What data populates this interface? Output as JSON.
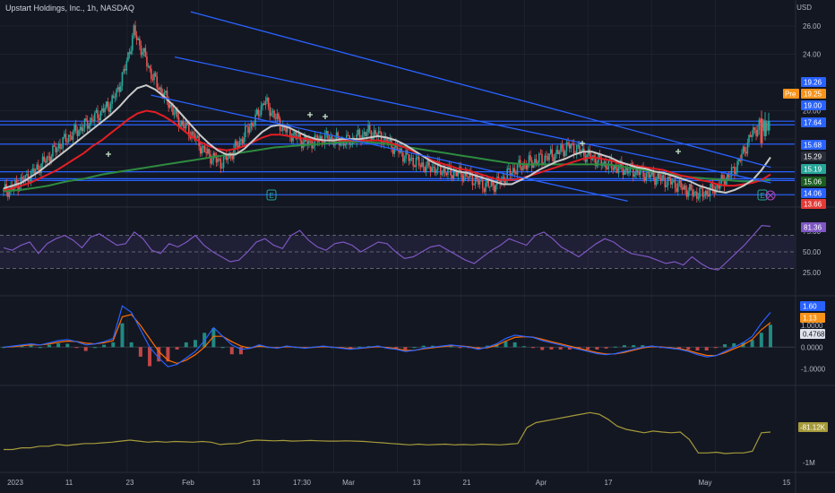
{
  "header": {
    "title": "Upstart Holdings, Inc., 1h, NASDAQ",
    "currency": "USD"
  },
  "colors": {
    "background": "#131722",
    "grid": "#1e222d",
    "candle_up": "#26a69a",
    "candle_down": "#ef5350",
    "trend_line": "#2962ff",
    "hline": "#2962ff",
    "ma_red": "#e31e24",
    "ma_green": "#2e8b3e",
    "ma_white": "#c9c9c9",
    "rsi": "#7e57c2",
    "macd": "#2962ff",
    "signal": "#ff6d00",
    "volume_line": "#a59a3a"
  },
  "price_axis": {
    "ticks": [
      "26.00",
      "24.00",
      "22.00",
      "20.00",
      "17.64",
      "15.68",
      "15.29",
      "15.19",
      "15.06",
      "14.06",
      "13.66"
    ],
    "badges": [
      {
        "label": "19.26",
        "color": "#2962ff"
      },
      {
        "label": "19.25",
        "color": "#f7931a",
        "prefix": "Pre"
      },
      {
        "label": "19.00",
        "color": "#2962ff"
      },
      {
        "label": "17.64",
        "color": "#2962ff"
      },
      {
        "label": "15.68",
        "color": "#2962ff"
      },
      {
        "label": "15.29",
        "color": "#2a2e39"
      },
      {
        "label": "15.19",
        "color": "#26a69a"
      },
      {
        "label": "15.06",
        "color": "#1b5e20"
      },
      {
        "label": "14.06",
        "color": "#2962ff"
      },
      {
        "label": "13.66",
        "color": "#e53935"
      }
    ]
  },
  "rsi_axis": {
    "ticks": [
      "75.00",
      "50.00",
      "25.00"
    ],
    "badge": "81.36"
  },
  "macd_axis": {
    "ticks": [
      "1.0000",
      "0.0000",
      "-1.0000"
    ],
    "badges": [
      "1.60",
      "1.13",
      "0.4768"
    ]
  },
  "vol_axis": {
    "ticks": [
      "-1M"
    ],
    "badge": "-81.12K"
  },
  "time_axis": {
    "labels": [
      "2023",
      "11",
      "23",
      "Feb",
      "13",
      "17:30",
      "Mar",
      "13",
      "21",
      "Apr",
      "17",
      "May",
      "15"
    ]
  },
  "events": {
    "earnings_label": "E"
  },
  "chart_data": {
    "type": "candlestick",
    "symbol": "Upstart Holdings, Inc.",
    "interval": "1h",
    "exchange": "NASDAQ",
    "price_range": [
      13.5,
      27.2
    ],
    "price_path": [
      14.3,
      14.5,
      15.0,
      15.4,
      16.0,
      16.6,
      17.3,
      17.9,
      18.4,
      18.8,
      19.3,
      19.8,
      20.3,
      21.2,
      23.0,
      25.6,
      24.2,
      22.6,
      21.5,
      20.6,
      19.4,
      18.8,
      18.1,
      17.2,
      16.7,
      16.3,
      16.8,
      17.6,
      18.6,
      19.4,
      20.7,
      19.8,
      18.9,
      18.4,
      18.0,
      17.7,
      17.9,
      18.1,
      18.0,
      17.8,
      17.9,
      18.2,
      18.5,
      18.3,
      17.9,
      17.4,
      16.9,
      16.5,
      16.2,
      16.0,
      15.9,
      15.7,
      15.6,
      15.5,
      15.2,
      14.8,
      14.7,
      14.9,
      15.5,
      15.9,
      16.2,
      16.4,
      16.6,
      16.8,
      17.1,
      17.5,
      17.3,
      16.9,
      16.6,
      16.3,
      16.1,
      15.9,
      15.8,
      15.7,
      15.5,
      15.3,
      15.1,
      14.9,
      14.6,
      14.3,
      14.1,
      14.2,
      14.6,
      15.1,
      15.7,
      16.8,
      18.2,
      19.0,
      18.9
    ],
    "ma_white": [
      14.5,
      14.7,
      14.9,
      15.3,
      15.7,
      16.2,
      16.7,
      17.2,
      17.7,
      18.2,
      18.7,
      19.2,
      19.7,
      20.3,
      21.0,
      21.6,
      21.8,
      21.5,
      21.0,
      20.4,
      19.7,
      19.0,
      18.3,
      17.7,
      17.2,
      16.9,
      16.9,
      17.3,
      17.9,
      18.5,
      18.9,
      19.0,
      18.8,
      18.5,
      18.2,
      18.0,
      17.9,
      17.9,
      18.0,
      18.0,
      18.0,
      18.1,
      18.2,
      18.1,
      17.9,
      17.6,
      17.2,
      16.8,
      16.4,
      16.1,
      15.9,
      15.7,
      15.6,
      15.4,
      15.2,
      15.0,
      14.8,
      14.8,
      15.1,
      15.4,
      15.8,
      16.1,
      16.4,
      16.6,
      16.9,
      17.1,
      17.1,
      16.9,
      16.7,
      16.4,
      16.2,
      16.0,
      15.9,
      15.7,
      15.6,
      15.4,
      15.2,
      15.0,
      14.7,
      14.5,
      14.3,
      14.2,
      14.4,
      14.7,
      15.1,
      15.8,
      16.7
    ],
    "ma_red": [
      14.4,
      14.5,
      14.7,
      14.9,
      15.2,
      15.5,
      15.8,
      16.2,
      16.6,
      17.0,
      17.5,
      17.9,
      18.4,
      18.9,
      19.4,
      19.8,
      20.0,
      19.9,
      19.6,
      19.2,
      18.7,
      18.2,
      17.8,
      17.5,
      17.3,
      17.2,
      17.3,
      17.5,
      17.8,
      18.1,
      18.3,
      18.3,
      18.2,
      18.1,
      18.0,
      17.9,
      17.9,
      17.9,
      17.9,
      17.9,
      17.9,
      17.9,
      17.9,
      17.8,
      17.6,
      17.4,
      17.1,
      16.8,
      16.5,
      16.3,
      16.1,
      15.9,
      15.8,
      15.6,
      15.4,
      15.2,
      15.1,
      15.1,
      15.2,
      15.4,
      15.6,
      15.8,
      16.0,
      16.2,
      16.4,
      16.6,
      16.7,
      16.6,
      16.5,
      16.3,
      16.2,
      16.1,
      16.0,
      15.9,
      15.8,
      15.6,
      15.4,
      15.3,
      15.1,
      15.0,
      14.8,
      14.7,
      14.7,
      14.8,
      14.9,
      15.1,
      15.5
    ],
    "ma_green": [
      14.3,
      14.35,
      14.4,
      14.5,
      14.6,
      14.7,
      14.85,
      15.0,
      15.1,
      15.2,
      15.35,
      15.5,
      15.6,
      15.7,
      15.8,
      15.9,
      16.0,
      16.1,
      16.2,
      16.3,
      16.4,
      16.5,
      16.6,
      16.7,
      16.8,
      16.9,
      17.0,
      17.1,
      17.2,
      17.3,
      17.4,
      17.45,
      17.5,
      17.55,
      17.6,
      17.65,
      17.7,
      17.75,
      17.8,
      17.8,
      17.8,
      17.75,
      17.7,
      17.6,
      17.5,
      17.4,
      17.3,
      17.2,
      17.1,
      17.0,
      16.9,
      16.8,
      16.7,
      16.6,
      16.5,
      16.4,
      16.3,
      16.25,
      16.2,
      16.2,
      16.2,
      16.2,
      16.2,
      16.2,
      16.2,
      16.2,
      16.2,
      16.2,
      16.1,
      16.0,
      15.9,
      15.8,
      15.7,
      15.6,
      15.5,
      15.4,
      15.3,
      15.25,
      15.2,
      15.15,
      15.1,
      15.05,
      15.0,
      15.0,
      15.05,
      15.1
    ],
    "horizontal_levels": [
      19.26,
      19.0,
      17.64,
      15.68,
      15.19,
      15.06,
      14.06
    ],
    "trend_lines": [
      {
        "from": {
          "t": 0.24,
          "p": 27.0
        },
        "to": {
          "t": 0.97,
          "p": 16.0
        }
      },
      {
        "from": {
          "t": 0.22,
          "p": 23.8
        },
        "to": {
          "t": 0.97,
          "p": 14.9
        }
      },
      {
        "from": {
          "t": 0.19,
          "p": 21.1
        },
        "to": {
          "t": 0.79,
          "p": 13.6
        }
      }
    ],
    "rsi": {
      "range": [
        0,
        100
      ],
      "upper": 70,
      "middle": 50,
      "lower": 30,
      "last": 81.36,
      "values": [
        55,
        52,
        58,
        62,
        48,
        60,
        66,
        70,
        64,
        55,
        68,
        72,
        65,
        58,
        60,
        74,
        66,
        52,
        48,
        60,
        56,
        62,
        70,
        58,
        50,
        44,
        38,
        40,
        50,
        62,
        66,
        58,
        54,
        70,
        76,
        64,
        56,
        52,
        60,
        62,
        58,
        50,
        56,
        62,
        60,
        50,
        42,
        44,
        50,
        56,
        58,
        52,
        46,
        40,
        36,
        44,
        52,
        58,
        66,
        62,
        58,
        70,
        74,
        66,
        56,
        50,
        44,
        52,
        60,
        66,
        62,
        54,
        48,
        46,
        44,
        40,
        36,
        38,
        34,
        44,
        36,
        30,
        28,
        38,
        48,
        58,
        70,
        82,
        81
      ]
    },
    "macd": {
      "range": [
        -1.6,
        2.2
      ],
      "last_macd": 1.6,
      "last_signal": 1.13,
      "last_hist": 0.4768,
      "macd": [
        0.0,
        0.05,
        0.1,
        0.15,
        0.1,
        0.2,
        0.3,
        0.35,
        0.25,
        0.1,
        0.15,
        0.25,
        0.4,
        1.9,
        1.6,
        0.8,
        0.0,
        -0.5,
        -0.9,
        -0.8,
        -0.5,
        -0.2,
        0.3,
        0.9,
        0.5,
        0.1,
        -0.1,
        -0.05,
        0.1,
        0.0,
        -0.05,
        0.05,
        0.0,
        -0.05,
        0.0,
        0.05,
        0.0,
        -0.05,
        -0.1,
        -0.05,
        0.0,
        0.05,
        -0.05,
        -0.1,
        -0.2,
        -0.15,
        -0.05,
        0.0,
        0.05,
        0.1,
        0.05,
        0.0,
        -0.1,
        0.0,
        0.15,
        0.4,
        0.55,
        0.5,
        0.45,
        0.3,
        0.2,
        0.1,
        0.0,
        -0.1,
        -0.2,
        -0.3,
        -0.35,
        -0.3,
        -0.2,
        -0.1,
        0.0,
        0.05,
        0.0,
        -0.05,
        -0.1,
        -0.2,
        -0.35,
        -0.45,
        -0.4,
        -0.2,
        0.0,
        0.2,
        0.5,
        1.1,
        1.6
      ],
      "signal": [
        0.0,
        0.02,
        0.06,
        0.1,
        0.1,
        0.15,
        0.22,
        0.28,
        0.26,
        0.18,
        0.15,
        0.2,
        0.3,
        1.4,
        1.5,
        1.0,
        0.4,
        -0.2,
        -0.6,
        -0.75,
        -0.6,
        -0.35,
        0.0,
        0.5,
        0.5,
        0.25,
        0.05,
        -0.05,
        0.05,
        0.0,
        -0.03,
        0.02,
        0.0,
        -0.03,
        -0.01,
        0.02,
        0.0,
        -0.03,
        -0.07,
        -0.06,
        -0.02,
        0.02,
        -0.02,
        -0.07,
        -0.15,
        -0.15,
        -0.08,
        -0.03,
        0.02,
        0.07,
        0.06,
        0.02,
        -0.06,
        -0.03,
        0.08,
        0.28,
        0.45,
        0.48,
        0.46,
        0.36,
        0.25,
        0.15,
        0.05,
        -0.05,
        -0.15,
        -0.25,
        -0.32,
        -0.31,
        -0.24,
        -0.14,
        -0.04,
        0.02,
        0.01,
        -0.03,
        -0.07,
        -0.15,
        -0.28,
        -0.38,
        -0.39,
        -0.26,
        -0.08,
        0.1,
        0.35,
        0.8,
        1.13
      ]
    },
    "volume_indicator": {
      "range": [
        -1.2,
        1.2
      ],
      "unit": "M",
      "last": -81.12,
      "last_unit": "K",
      "values": [
        -0.6,
        -0.6,
        -0.55,
        -0.55,
        -0.5,
        -0.5,
        -0.45,
        -0.48,
        -0.45,
        -0.42,
        -0.42,
        -0.4,
        -0.38,
        -0.35,
        -0.32,
        -0.35,
        -0.38,
        -0.36,
        -0.38,
        -0.36,
        -0.37,
        -0.38,
        -0.36,
        -0.38,
        -0.45,
        -0.43,
        -0.42,
        -0.35,
        -0.32,
        -0.33,
        -0.34,
        -0.33,
        -0.35,
        -0.34,
        -0.33,
        -0.34,
        -0.35,
        -0.35,
        -0.34,
        -0.35,
        -0.36,
        -0.38,
        -0.4,
        -0.42,
        -0.44,
        -0.46,
        -0.44,
        -0.46,
        -0.45,
        -0.44,
        -0.46,
        -0.45,
        -0.46,
        -0.44,
        -0.45,
        -0.46,
        -0.44,
        -0.42,
        0.05,
        0.2,
        0.25,
        0.3,
        0.35,
        0.4,
        0.45,
        0.5,
        0.45,
        0.3,
        0.1,
        0.0,
        -0.05,
        -0.1,
        -0.05,
        -0.08,
        -0.1,
        -0.08,
        -0.3,
        -0.7,
        -0.7,
        -0.68,
        -0.72,
        -0.7,
        -0.7,
        -0.65,
        -0.1,
        -0.08
      ]
    }
  }
}
